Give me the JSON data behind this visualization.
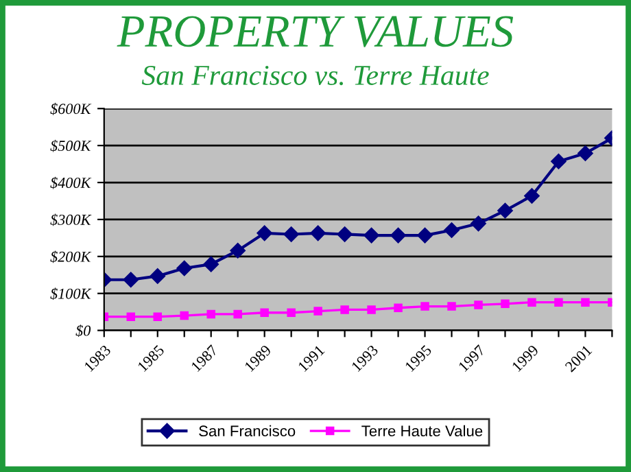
{
  "chart_data": {
    "type": "line",
    "title": "PROPERTY VALUES",
    "subtitle": "San Francisco vs. Terre Haute",
    "categories": [
      "1983",
      null,
      "1985",
      null,
      "1987",
      null,
      "1989",
      null,
      "1991",
      null,
      "1993",
      null,
      "1995",
      null,
      "1997",
      null,
      "1999",
      null,
      "2001",
      null
    ],
    "series": [
      {
        "name": "San Francisco",
        "color": "#000080",
        "marker": "diamond",
        "values": [
          137,
          137,
          147,
          168,
          179,
          216,
          263,
          260,
          263,
          260,
          257,
          257,
          257,
          271,
          289,
          324,
          364,
          457,
          479,
          520
        ]
      },
      {
        "name": "Terre Haute Value",
        "color": "#ff00ff",
        "marker": "square",
        "values": [
          37,
          37,
          37,
          40,
          44,
          44,
          48,
          48,
          52,
          56,
          56,
          61,
          65,
          65,
          69,
          72,
          76,
          76,
          76,
          76
        ]
      }
    ],
    "ylim": [
      0,
      600
    ],
    "yticks": [
      {
        "value": 0,
        "label": "$0"
      },
      {
        "value": 100,
        "label": "$100K"
      },
      {
        "value": 200,
        "label": "$200K"
      },
      {
        "value": 300,
        "label": "$300K"
      },
      {
        "value": 400,
        "label": "$400K"
      },
      {
        "value": 500,
        "label": "$500K"
      },
      {
        "value": 600,
        "label": "$600K"
      }
    ],
    "grid": "y",
    "legend": "bottom",
    "line_style": "solid"
  }
}
